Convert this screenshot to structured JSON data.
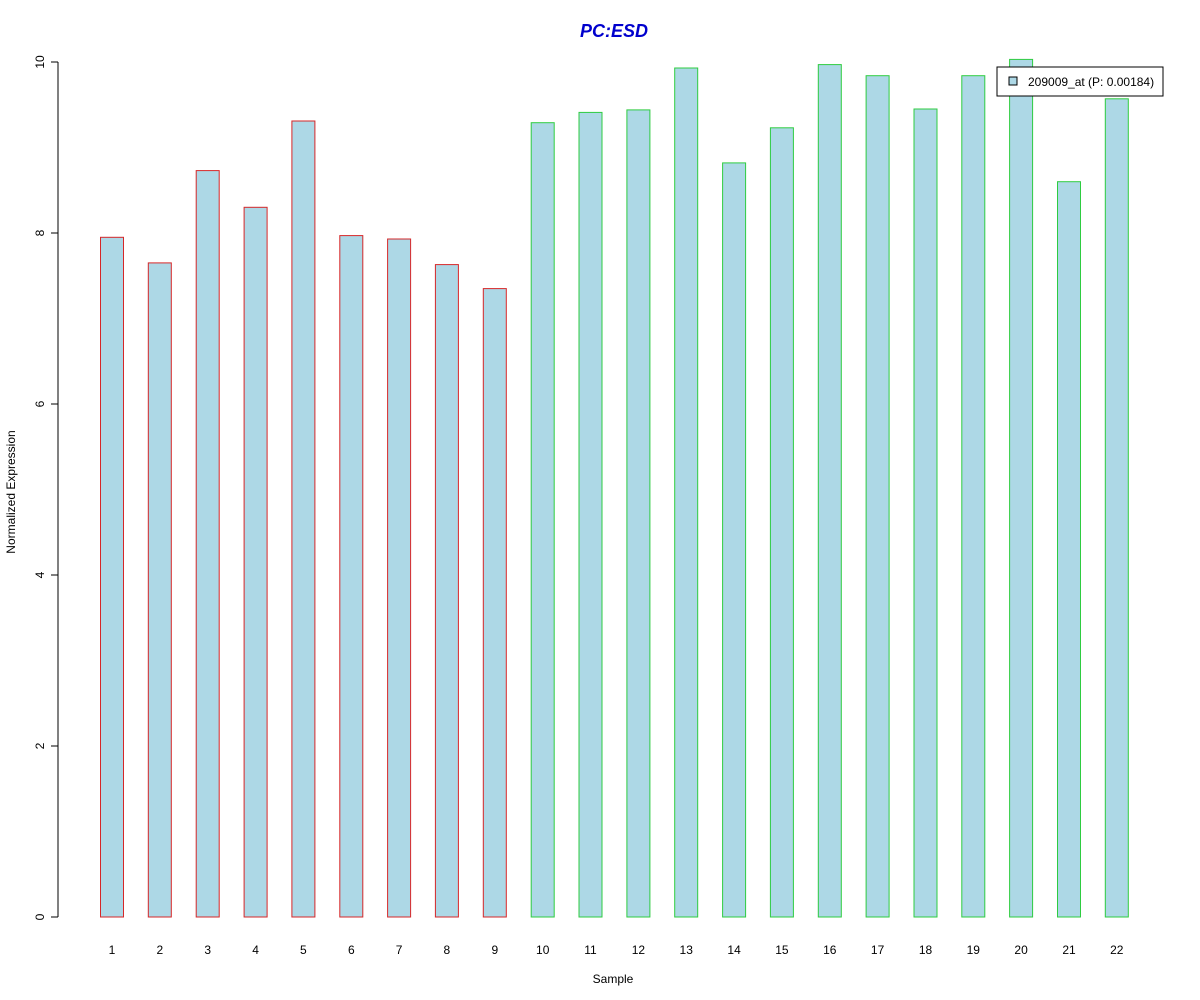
{
  "chart_data": {
    "type": "bar",
    "title": "PC:ESD",
    "xlabel": "Sample",
    "ylabel": "Normalized Expression",
    "ylim": [
      0,
      10
    ],
    "yticks": [
      0,
      2,
      4,
      6,
      8,
      10
    ],
    "categories": [
      "1",
      "2",
      "3",
      "4",
      "5",
      "6",
      "7",
      "8",
      "9",
      "10",
      "11",
      "12",
      "13",
      "14",
      "15",
      "16",
      "17",
      "18",
      "19",
      "20",
      "21",
      "22"
    ],
    "values": [
      7.95,
      7.65,
      8.73,
      8.3,
      9.31,
      7.97,
      7.93,
      7.63,
      7.35,
      9.29,
      9.41,
      9.44,
      9.93,
      8.82,
      9.23,
      9.97,
      9.84,
      9.45,
      9.84,
      10.03,
      8.6,
      9.57
    ],
    "series": [
      {
        "name": "209009_at (P: 0.00184)",
        "values": [
          7.95,
          7.65,
          8.73,
          8.3,
          9.31,
          7.97,
          7.93,
          7.63,
          7.35,
          9.29,
          9.41,
          9.44,
          9.93,
          8.82,
          9.23,
          9.97,
          9.84,
          9.45,
          9.84,
          10.03,
          8.6,
          9.57
        ]
      }
    ],
    "group_border_colors": [
      "#d62728",
      "#d62728",
      "#d62728",
      "#d62728",
      "#d62728",
      "#d62728",
      "#d62728",
      "#d62728",
      "#d62728",
      "#2ecc40",
      "#2ecc40",
      "#2ecc40",
      "#2ecc40",
      "#2ecc40",
      "#2ecc40",
      "#2ecc40",
      "#2ecc40",
      "#2ecc40",
      "#2ecc40",
      "#2ecc40",
      "#2ecc40",
      "#2ecc40"
    ],
    "bar_fill": "#add8e6",
    "title_color": "#0000cd",
    "legend_position": "top-right",
    "grid": false
  }
}
